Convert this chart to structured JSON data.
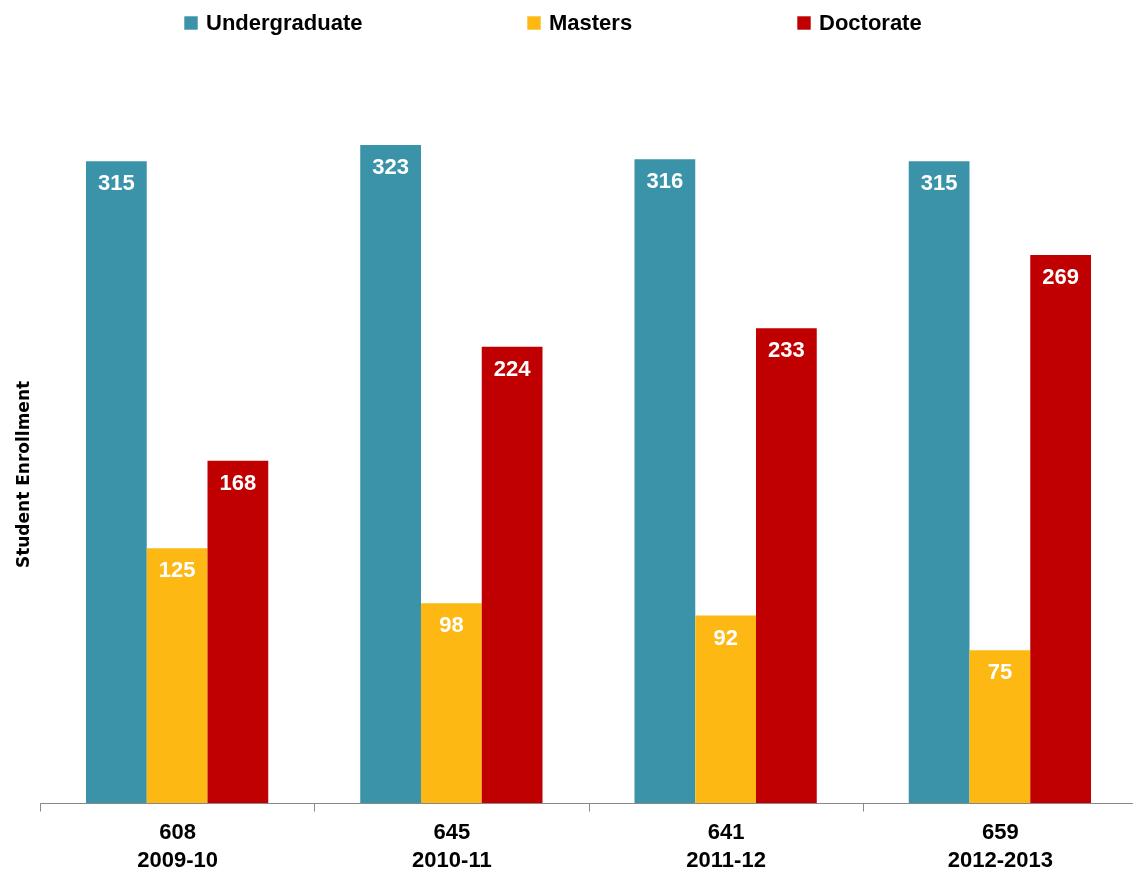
{
  "chart_data": {
    "type": "bar",
    "ylabel": "Student Enrollment",
    "categories": [
      "608\n2009-10",
      "645\n2010-11",
      "641\n2011-12",
      "659\n2012-2013"
    ],
    "series": [
      {
        "name": "Undergraduate",
        "color": "#3a93a8",
        "values": [
          315,
          323,
          316,
          315
        ]
      },
      {
        "name": "Masters",
        "color": "#fdb813",
        "values": [
          125,
          98,
          92,
          75
        ]
      },
      {
        "name": "Doctorate",
        "color": "#c00000",
        "values": [
          168,
          224,
          233,
          269
        ]
      }
    ],
    "data_labels": true,
    "legend": "top",
    "grid": false
  }
}
